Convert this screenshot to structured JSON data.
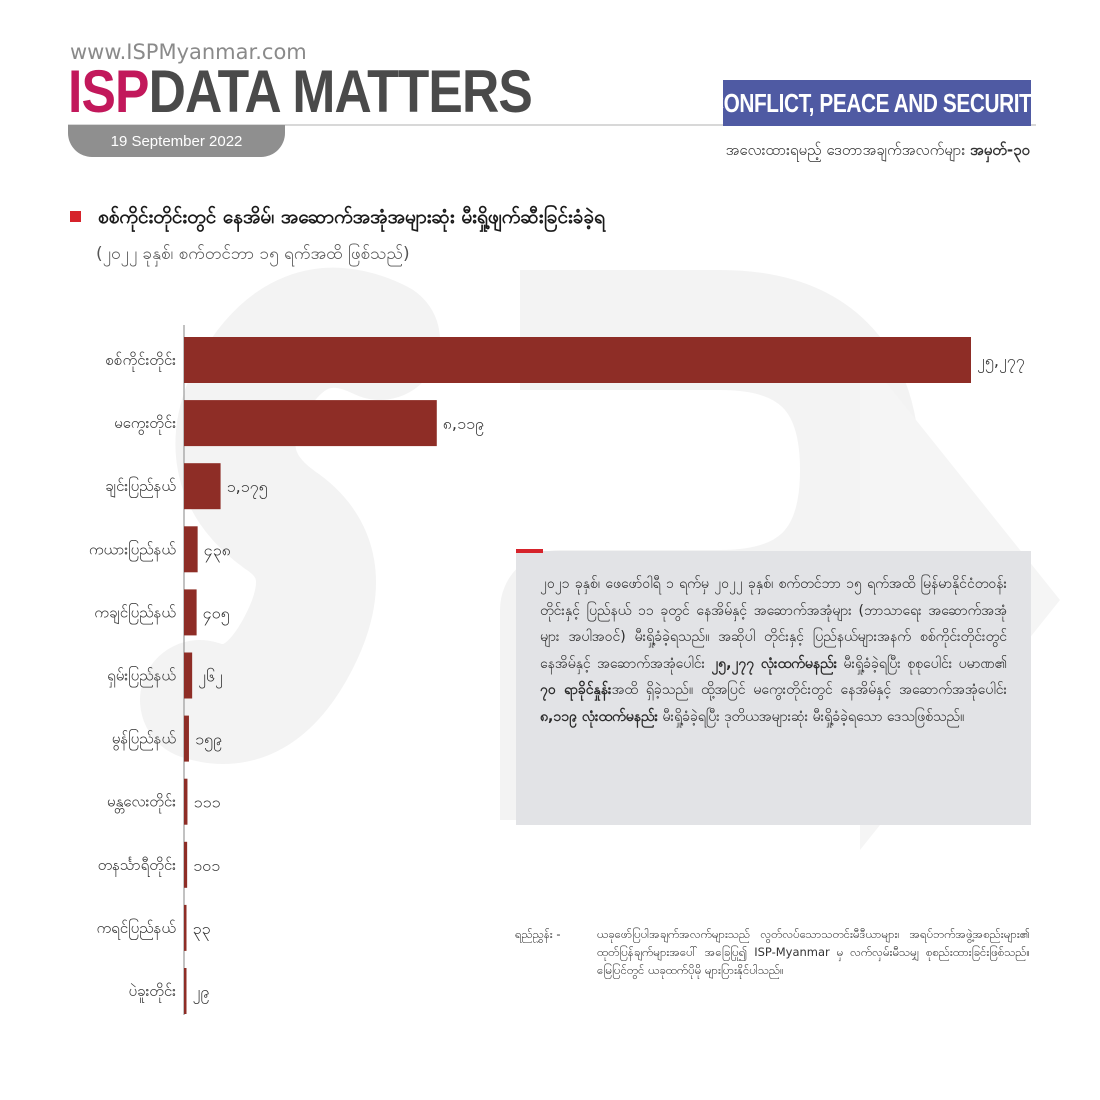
{
  "header": {
    "url": "www.ISPMyanmar.com",
    "brand_isp": "ISP",
    "brand_rest": "DATA MATTERS",
    "date": "19 September 2022",
    "category": "CONFLICT, PEACE AND SECURITY",
    "series_label": "အလေးထားရမည့် ဒေတာအချက်အလက်များ",
    "series_number": "အမှတ်-၃၀"
  },
  "colors": {
    "accent_red": "#d6232b",
    "bar": "#8e2d26",
    "badge": "#4f5aa3",
    "brand_pink": "#c2185b"
  },
  "chart_data": {
    "type": "bar",
    "orientation": "horizontal",
    "title": "စစ်ကိုင်းတိုင်းတွင် နေအိမ်၊ အဆောက်အအုံအများဆုံး မီးရှို့ဖျက်ဆီးခြင်းခံခဲ့ရ",
    "subtitle": "(၂၀၂၂ ခုနှစ်၊ စက်တင်ဘာ ၁၅ ရက်အထိ ဖြစ်သည်)",
    "categories": [
      "စစ်ကိုင်းတိုင်း",
      "မကွေးတိုင်း",
      "ချင်းပြည်နယ်",
      "ကယားပြည်နယ်",
      "ကချင်ပြည်နယ်",
      "ရှမ်းပြည်နယ်",
      "မွန်ပြည်နယ်",
      "မန္တလေးတိုင်း",
      "တနင်္သာရီတိုင်း",
      "ကရင်ပြည်နယ်",
      "ပဲခူးတိုင်း"
    ],
    "values": [
      25277,
      8119,
      1175,
      438,
      405,
      262,
      159,
      111,
      101,
      33,
      29
    ],
    "labels": [
      "၂၅,၂၇၇",
      "၈,၁၁၉",
      "၁,၁၇၅",
      "၄၃၈",
      "၄၀၅",
      "၂၆၂",
      "၁၅၉",
      "၁၁၁",
      "၁၀၁",
      "၃၃",
      "၂၉"
    ],
    "bar_color": "#8e2d26",
    "xlabel": "",
    "ylabel": ""
  },
  "info": {
    "p1_a": "၂၀၂၁ ခုနှစ်၊ ဖေဖော်ဝါရီ ၁ ရက်မှ ၂၀၂၂ ခုနှစ်၊ စက်တင်ဘာ ၁၅ ရက်အထိ မြန်မာနိုင်ငံတဝန်း တိုင်းနှင့် ပြည်နယ် ၁၁ ခုတွင် နေအိမ်နှင့် အဆောက်အအုံများ (ဘာသာရေး အဆောက်အအုံများ အပါအဝင်) မီးရှို့ခံခဲ့ရသည်။ အဆိုပါ တိုင်းနှင့် ပြည်နယ်များအနက် စစ်ကိုင်းတိုင်းတွင် နေအိမ်နှင့် အဆောက်အအုံပေါင်း ",
    "p1_b1": "၂၅,၂၇၇ လုံးထက်မနည်း",
    "p1_c": " မီးရှို့ခံခဲ့ရပြီး စုစုပေါင်း ပမာဏ၏ ",
    "p1_b2": "၇၀ ရာခိုင်နှုန်း",
    "p1_d": "အထိ ရှိခဲ့သည်။ ထို့အပြင် မကွေးတိုင်းတွင် နေအိမ်နှင့် အဆောက်အအုံပေါင်း ",
    "p1_b3": "၈,၁၁၉ လုံးထက်မနည်း",
    "p1_e": " မီးရှို့ခံခဲ့ရပြီး ဒုတိယအများဆုံး မီးရှို့ခံခဲ့ရသော ဒေသဖြစ်သည်။"
  },
  "source": {
    "label": "ရည်ညွှန်း -",
    "text": "ယခုဖော်ပြပါအချက်အလက်များသည် လွတ်လပ်သောသတင်းမီဒီယာများ၊ အရပ်ဘက်အဖွဲ့အစည်းများ၏ ထုတ်ပြန်ချက်များအပေါ် အခြေပြု၍ ISP-Myanmar မှ လက်လှမ်းမီသမျှ စုစည်းထားခြင်းဖြစ်သည်။ မြေပြင်တွင် ယခုထက်ပိုမို များပြားနိုင်ပါသည်။"
  }
}
